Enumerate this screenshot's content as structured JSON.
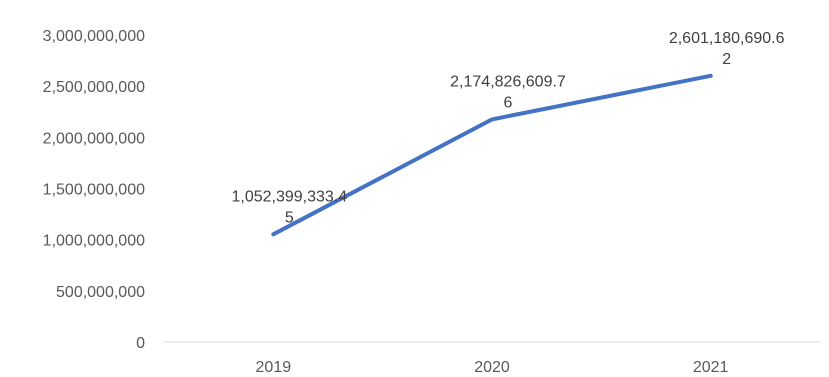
{
  "chart_data": {
    "type": "line",
    "title": "",
    "xlabel": "",
    "ylabel": "",
    "categories": [
      "2019",
      "2020",
      "2021"
    ],
    "series": [
      {
        "values": [
          1052399333.45,
          2174826609.76,
          2601180690.62
        ],
        "color": "#4472C4",
        "data_labels": [
          [
            "1,052,399,333.4",
            "5"
          ],
          [
            "2,174,826,609.7",
            "6"
          ],
          [
            "2,601,180,690.6",
            "2"
          ]
        ]
      }
    ],
    "ylim": [
      0,
      3000000000
    ],
    "yticks": [
      0,
      500000000,
      1000000000,
      1500000000,
      2000000000,
      2500000000,
      3000000000
    ],
    "ytick_labels": [
      "0",
      "500,000,000",
      "1,000,000,000",
      "1,500,000,000",
      "2,000,000,000",
      "2,500,000,000",
      "3,000,000,000"
    ],
    "grid": false,
    "legend": "none",
    "axis_color": "#d9d9d9"
  }
}
